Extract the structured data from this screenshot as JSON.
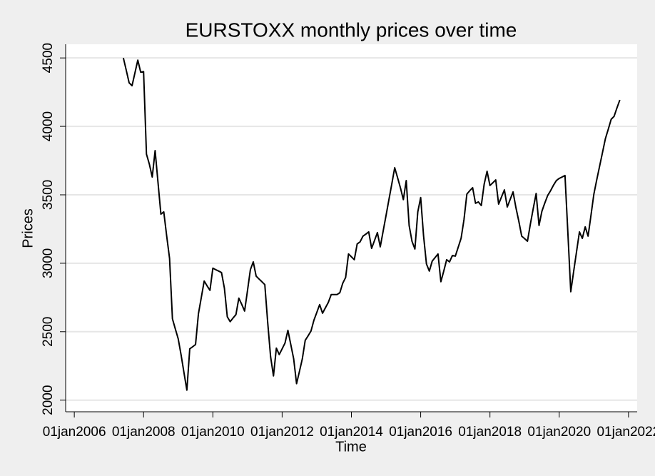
{
  "chart_data": {
    "type": "line",
    "title": "EURSTOXX monthly prices over time",
    "x_label": "Time",
    "y_label": "Prices",
    "color": "#000000",
    "grid": true,
    "xlim": [
      "2005-10",
      "2022-04"
    ],
    "xticks": [
      {
        "value": "2006-01-01",
        "label": "01jan2006"
      },
      {
        "value": "2008-01-01",
        "label": "01jan2008"
      },
      {
        "value": "2010-01-01",
        "label": "01jan2010"
      },
      {
        "value": "2012-01-01",
        "label": "01jan2012"
      },
      {
        "value": "2014-01-01",
        "label": "01jan2014"
      },
      {
        "value": "2016-01-01",
        "label": "01jan2016"
      },
      {
        "value": "2018-01-01",
        "label": "01jan2018"
      },
      {
        "value": "2020-01-01",
        "label": "01jan2020"
      },
      {
        "value": "2022-01-01",
        "label": "01jan2022"
      }
    ],
    "ylim": [
      1915,
      4600
    ],
    "yticks": [
      2000,
      2500,
      3000,
      3500,
      4000,
      4500
    ],
    "x": [
      "2007-06",
      "2007-07",
      "2007-08",
      "2007-09",
      "2007-10",
      "2007-11",
      "2007-12",
      "2008-01",
      "2008-02",
      "2008-03",
      "2008-04",
      "2008-05",
      "2008-06",
      "2008-07",
      "2008-08",
      "2008-09",
      "2008-10",
      "2008-11",
      "2008-12",
      "2009-01",
      "2009-02",
      "2009-03",
      "2009-04",
      "2009-05",
      "2009-06",
      "2009-07",
      "2009-08",
      "2009-09",
      "2009-10",
      "2009-11",
      "2009-12",
      "2010-01",
      "2010-02",
      "2010-03",
      "2010-04",
      "2010-05",
      "2010-06",
      "2010-07",
      "2010-08",
      "2010-09",
      "2010-10",
      "2010-11",
      "2010-12",
      "2011-01",
      "2011-02",
      "2011-03",
      "2011-04",
      "2011-05",
      "2011-06",
      "2011-07",
      "2011-08",
      "2011-09",
      "2011-10",
      "2011-11",
      "2011-12",
      "2012-01",
      "2012-02",
      "2012-03",
      "2012-04",
      "2012-05",
      "2012-06",
      "2012-07",
      "2012-08",
      "2012-09",
      "2012-10",
      "2012-11",
      "2012-12",
      "2013-01",
      "2013-02",
      "2013-03",
      "2013-04",
      "2013-05",
      "2013-06",
      "2013-07",
      "2013-08",
      "2013-09",
      "2013-10",
      "2013-11",
      "2013-12",
      "2014-01",
      "2014-02",
      "2014-03",
      "2014-04",
      "2014-05",
      "2014-06",
      "2014-07",
      "2014-08",
      "2014-09",
      "2014-10",
      "2014-11",
      "2014-12",
      "2015-01",
      "2015-02",
      "2015-03",
      "2015-04",
      "2015-05",
      "2015-06",
      "2015-07",
      "2015-08",
      "2015-09",
      "2015-10",
      "2015-11",
      "2015-12",
      "2016-01",
      "2016-02",
      "2016-03",
      "2016-04",
      "2016-05",
      "2016-06",
      "2016-07",
      "2016-08",
      "2016-09",
      "2016-10",
      "2016-11",
      "2016-12",
      "2017-01",
      "2017-02",
      "2017-03",
      "2017-04",
      "2017-05",
      "2017-06",
      "2017-07",
      "2017-08",
      "2017-09",
      "2017-10",
      "2017-11",
      "2017-12",
      "2018-01",
      "2018-02",
      "2018-03",
      "2018-04",
      "2018-05",
      "2018-06",
      "2018-07",
      "2018-08",
      "2018-09",
      "2018-10",
      "2018-11",
      "2018-12",
      "2019-01",
      "2019-02",
      "2019-03",
      "2019-04",
      "2019-05",
      "2019-06",
      "2019-07",
      "2019-08",
      "2019-09",
      "2019-10",
      "2019-11",
      "2019-12",
      "2020-01",
      "2020-02",
      "2020-03",
      "2020-04",
      "2020-05",
      "2020-06",
      "2020-07",
      "2020-08",
      "2020-09",
      "2020-10",
      "2020-11",
      "2020-12",
      "2021-01",
      "2021-02",
      "2021-03",
      "2021-04",
      "2021-05",
      "2021-06",
      "2021-07",
      "2021-08",
      "2021-09",
      "2021-10"
    ],
    "values": [
      4500,
      4410,
      4318,
      4297,
      4390,
      4484,
      4396,
      4400,
      3797,
      3724,
      3630,
      3823,
      3590,
      3359,
      3375,
      3200,
      3036,
      2594,
      2520,
      2448,
      2330,
      2200,
      2073,
      2375,
      2390,
      2406,
      2630,
      2750,
      2870,
      2835,
      2802,
      2964,
      2953,
      2943,
      2932,
      2818,
      2609,
      2573,
      2600,
      2625,
      2745,
      2700,
      2651,
      2800,
      2953,
      3010,
      2906,
      2885,
      2865,
      2844,
      2568,
      2318,
      2177,
      2380,
      2333,
      2375,
      2417,
      2510,
      2406,
      2302,
      2120,
      2210,
      2302,
      2437,
      2470,
      2505,
      2583,
      2640,
      2698,
      2635,
      2675,
      2714,
      2771,
      2771,
      2771,
      2785,
      2854,
      2896,
      3068,
      3047,
      3026,
      3141,
      3156,
      3198,
      3213,
      3229,
      3109,
      3166,
      3224,
      3120,
      3235,
      3349,
      3465,
      3580,
      3698,
      3625,
      3550,
      3465,
      3604,
      3276,
      3160,
      3104,
      3375,
      3480,
      3200,
      2995,
      2943,
      3016,
      3042,
      3068,
      2865,
      2943,
      3026,
      3010,
      3057,
      3052,
      3117,
      3182,
      3318,
      3505,
      3530,
      3552,
      3438,
      3448,
      3422,
      3578,
      3672,
      3568,
      3588,
      3609,
      3432,
      3484,
      3536,
      3411,
      3466,
      3521,
      3406,
      3307,
      3198,
      3180,
      3161,
      3286,
      3400,
      3510,
      3276,
      3380,
      3440,
      3495,
      3530,
      3570,
      3604,
      3620,
      3630,
      3641,
      3220,
      2792,
      2940,
      3085,
      3229,
      3182,
      3266,
      3198,
      3350,
      3505,
      3610,
      3710,
      3810,
      3911,
      3980,
      4052,
      4073,
      4135,
      4193
    ]
  }
}
